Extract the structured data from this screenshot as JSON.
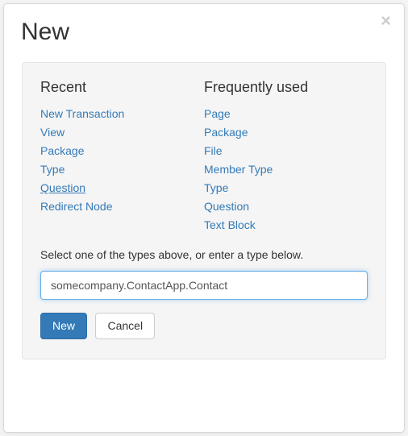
{
  "modal": {
    "title": "New",
    "close_glyph": "×"
  },
  "recent": {
    "heading": "Recent",
    "items": [
      {
        "label": "New Transaction",
        "underline": false
      },
      {
        "label": "View",
        "underline": false
      },
      {
        "label": "Package",
        "underline": false
      },
      {
        "label": "Type",
        "underline": false
      },
      {
        "label": "Question",
        "underline": true
      },
      {
        "label": "Redirect Node",
        "underline": false
      }
    ]
  },
  "frequent": {
    "heading": "Frequently used",
    "items": [
      {
        "label": "Page"
      },
      {
        "label": "Package"
      },
      {
        "label": "File"
      },
      {
        "label": "Member Type"
      },
      {
        "label": "Type"
      },
      {
        "label": "Question"
      },
      {
        "label": "Text Block"
      }
    ]
  },
  "help_text": "Select one of the types above, or enter a type below.",
  "input": {
    "value": "somecompany.ContactApp.Contact",
    "placeholder": ""
  },
  "buttons": {
    "primary": "New",
    "cancel": "Cancel"
  },
  "colors": {
    "link": "#337ab7",
    "panel_bg": "#f5f5f5",
    "panel_border": "#e4e4e4",
    "primary_bg": "#337ab7",
    "primary_border": "#2e6da4",
    "text": "#333333",
    "input_focus_border": "#77b2e4"
  }
}
